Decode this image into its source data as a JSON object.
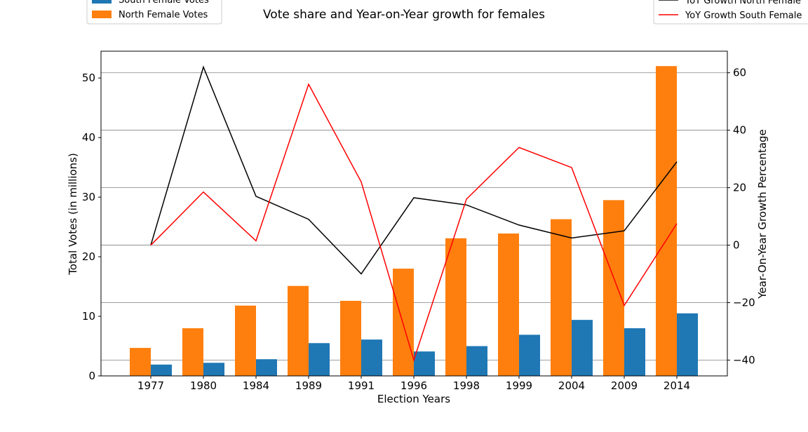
{
  "chart_data": {
    "type": "bar",
    "title": "Vote share and Year-on-Year growth for females",
    "xlabel": "Election Years",
    "ylabel": "Total Votes (in millions)",
    "y2label": "Year-On-Year Growth Percentage",
    "categories": [
      "1977",
      "1980",
      "1984",
      "1989",
      "1991",
      "1996",
      "1998",
      "1999",
      "2004",
      "2009",
      "2014"
    ],
    "ylim": [
      0,
      54.5
    ],
    "yticks": [
      0,
      10,
      20,
      30,
      40,
      50
    ],
    "y2lim": [
      -45.5,
      67.5
    ],
    "y2ticks": [
      -40,
      -20,
      0,
      20,
      40,
      60
    ],
    "grid": "horizontal lines on secondary axis",
    "bar_series": [
      {
        "name": "North Female Votes",
        "color": "#ff7f0e",
        "values": [
          4.7,
          8.0,
          11.8,
          15.1,
          12.6,
          18.0,
          23.1,
          23.9,
          26.3,
          29.5,
          52.0
        ]
      },
      {
        "name": "South Female Votes",
        "color": "#1f77b4",
        "values": [
          1.9,
          2.2,
          2.8,
          5.5,
          6.1,
          4.1,
          5.0,
          6.9,
          9.4,
          8.0,
          10.5
        ]
      }
    ],
    "line_series": [
      {
        "name": "YoY Growth North Female",
        "color": "#000000",
        "values": [
          0,
          62,
          17,
          9,
          -10,
          16.5,
          14,
          7,
          2.5,
          5,
          29
        ]
      },
      {
        "name": "YoY Growth South Female",
        "color": "#ff0000",
        "values": [
          0,
          18.5,
          1.5,
          56,
          22,
          -40,
          16,
          34,
          27,
          -21,
          7.5
        ]
      }
    ],
    "legend_left": {
      "placement": "top-left",
      "entries": [
        "South Female Votes",
        "North Female Votes"
      ]
    },
    "legend_right": {
      "placement": "top-right",
      "entries": [
        "YoY Growth North Female",
        "YoY Growth South Female"
      ]
    }
  }
}
